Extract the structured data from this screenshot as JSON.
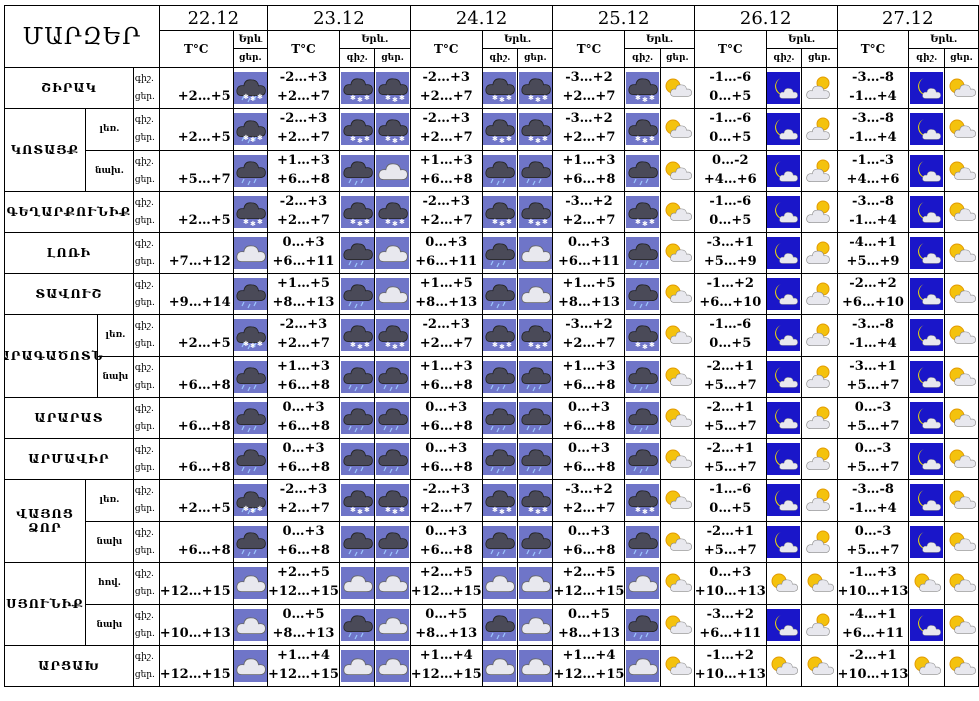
{
  "header": {
    "title": "ՄԱՐԶԵՐ",
    "dates": [
      "22.12",
      "23.12",
      "24.12",
      "25.12",
      "26.12",
      "27.12"
    ],
    "temp_label": "T°C",
    "weather_label_first": "Երև",
    "weather_label": "Երև.",
    "night_label": "գիշ.",
    "day_label": "ցեր."
  },
  "row_labels": {
    "night": "գիշ.",
    "day": "ցեր."
  },
  "regions": [
    {
      "name": "ՇԻՐԱԿ",
      "rows": [
        {
          "d22": "+2…+5",
          "t": [
            "-2…+3",
            "+2…+7",
            "-2…+3",
            "+2…+7",
            "-3…+2",
            "+2…+7",
            "-1…-6",
            "0…+5",
            "-3…-8",
            "-1…+4"
          ]
        }
      ]
    },
    {
      "name": "ԿՈՏԱՅՔ",
      "rows": [
        {
          "sub": "լեռ.",
          "d22": "+2…+5",
          "t": [
            "-2…+3",
            "+2…+7",
            "-2…+3",
            "+2…+7",
            "-3…+2",
            "+2…+7",
            "-1…-6",
            "0…+5",
            "-3…-8",
            "-1…+4"
          ]
        },
        {
          "sub": "նախ.",
          "d22": "+5…+7",
          "t": [
            "+1…+3",
            "+6…+8",
            "+1…+3",
            "+6…+8",
            "+1…+3",
            "+6…+8",
            "0…-2",
            "+4…+6",
            "-1…-3",
            "+4…+6"
          ]
        }
      ]
    },
    {
      "name": "ԳԵՂԱՐՔՈՒՆԻՔ",
      "rows": [
        {
          "d22": "+2…+5",
          "t": [
            "-2…+3",
            "+2…+7",
            "-2…+3",
            "+2…+7",
            "-3…+2",
            "+2…+7",
            "-1…-6",
            "0…+5",
            "-3…-8",
            "-1…+4"
          ]
        }
      ]
    },
    {
      "name": "ԼՈՌԻ",
      "rows": [
        {
          "d22": "+7…+12",
          "t": [
            "0…+3",
            "+6…+11",
            "0…+3",
            "+6…+11",
            "0…+3",
            "+6…+11",
            "-3…+1",
            "+5…+9",
            "-4…+1",
            "+5…+9"
          ]
        }
      ]
    },
    {
      "name": "ՏԱՎՈՒՇ",
      "rows": [
        {
          "d22": "+9…+14",
          "t": [
            "+1…+5",
            "+8…+13",
            "+1…+5",
            "+8…+13",
            "+1…+5",
            "+8…+13",
            "-1…+2",
            "+6…+10",
            "-2…+2",
            "+6…+10"
          ]
        }
      ]
    },
    {
      "name": "ԱՐԱԳԱԾՈՏՆ",
      "rows": [
        {
          "sub": "լեռ.",
          "d22": "+2…+5",
          "t": [
            "-2…+3",
            "+2…+7",
            "-2…+3",
            "+2…+7",
            "-3…+2",
            "+2…+7",
            "-1…-6",
            "0…+5",
            "-3…-8",
            "-1…+4"
          ]
        },
        {
          "sub": "նախ",
          "d22": "+6…+8",
          "t": [
            "+1…+3",
            "+6…+8",
            "+1…+3",
            "+6…+8",
            "+1…+3",
            "+6…+8",
            "-2…+1",
            "+5…+7",
            "-3…+1",
            "+5…+7"
          ]
        }
      ]
    },
    {
      "name": "ԱՐԱՐԱՏ",
      "rows": [
        {
          "d22": "+6…+8",
          "t": [
            "0…+3",
            "+6…+8",
            "0…+3",
            "+6…+8",
            "0…+3",
            "+6…+8",
            "-2…+1",
            "+5…+7",
            "0…-3",
            "+5…+7"
          ]
        }
      ]
    },
    {
      "name": "ԱՐՄԱՎԻՐ",
      "rows": [
        {
          "d22": "+6…+8",
          "t": [
            "0…+3",
            "+6…+8",
            "0…+3",
            "+6…+8",
            "0…+3",
            "+6…+8",
            "-2…+1",
            "+5…+7",
            "0…-3",
            "+5…+7"
          ]
        }
      ]
    },
    {
      "name": "ՎԱՅՈՑ ՁՈՐ",
      "rows": [
        {
          "sub": "լեռ.",
          "d22": "+2…+5",
          "t": [
            "-2…+3",
            "+2…+7",
            "-2…+3",
            "+2…+7",
            "-3…+2",
            "+2…+7",
            "-1…-6",
            "0…+5",
            "-3…-8",
            "-1…+4"
          ]
        },
        {
          "sub": "նախ",
          "d22": "+6…+8",
          "t": [
            "0…+3",
            "+6…+8",
            "0…+3",
            "+6…+8",
            "0…+3",
            "+6…+8",
            "-2…+1",
            "+5…+7",
            "0…-3",
            "+5…+7"
          ]
        }
      ]
    },
    {
      "name": "ՍՅՈՒՆԻՔ",
      "rows": [
        {
          "sub": "հով.",
          "d22": "+12…+15",
          "t": [
            "+2…+5",
            "+12…+15",
            "+2…+5",
            "+12…+15",
            "+2…+5",
            "+12…+15",
            "0…+3",
            "+10…+13",
            "-1…+3",
            "+10…+13"
          ]
        },
        {
          "sub": "նախ",
          "d22": "+10…+13",
          "t": [
            "0…+5",
            "+8…+13",
            "0…+5",
            "+8…+13",
            "0…+5",
            "+8…+13",
            "-3…+2",
            "+6…+11",
            "-4…+1",
            "+6…+11"
          ]
        }
      ]
    },
    {
      "name": "ԱՐՑԱԽ",
      "rows": [
        {
          "d22": "+12…+15",
          "t": [
            "+1…+4",
            "+12…+15",
            "+1…+4",
            "+12…+15",
            "+1…+4",
            "+12…+15",
            "-1…+2",
            "+10…+13",
            "-2…+1",
            "+10…+13"
          ]
        }
      ]
    }
  ],
  "icon_names": [
    "cloud-sleet-icon",
    "cloud-snow-icon",
    "cloud-rain-icon",
    "cloud-icon",
    "sun-cloud-icon",
    "moon-cloud-icon",
    "cloud-sun-icon"
  ],
  "icons": [
    {
      "d22": "cloud-sleet-icon",
      "d23": [
        "cloud-snow-icon",
        "cloud-snow-icon"
      ],
      "d24": [
        "cloud-snow-icon",
        "cloud-snow-icon"
      ],
      "d25": [
        "cloud-snow-icon",
        "sun-cloud-icon"
      ],
      "d26": [
        "moon-cloud-icon",
        "cloud-sun-icon"
      ],
      "d27": [
        "moon-cloud-icon",
        "sun-cloud-icon"
      ]
    },
    {
      "d22": "cloud-sleet-icon",
      "d23": [
        "cloud-snow-icon",
        "cloud-snow-icon"
      ],
      "d24": [
        "cloud-snow-icon",
        "cloud-snow-icon"
      ],
      "d25": [
        "cloud-snow-icon",
        "sun-cloud-icon"
      ],
      "d26": [
        "moon-cloud-icon",
        "cloud-sun-icon"
      ],
      "d27": [
        "moon-cloud-icon",
        "sun-cloud-icon"
      ]
    },
    {
      "d22": "cloud-rain-icon",
      "d23": [
        "cloud-rain-icon",
        "cloud-icon"
      ],
      "d24": [
        "cloud-rain-icon",
        "cloud-rain-icon"
      ],
      "d25": [
        "cloud-rain-icon",
        "sun-cloud-icon"
      ],
      "d26": [
        "moon-cloud-icon",
        "cloud-sun-icon"
      ],
      "d27": [
        "moon-cloud-icon",
        "sun-cloud-icon"
      ]
    },
    {
      "d22": "cloud-snow-icon",
      "d23": [
        "cloud-snow-icon",
        "cloud-snow-icon"
      ],
      "d24": [
        "cloud-snow-icon",
        "cloud-snow-icon"
      ],
      "d25": [
        "cloud-snow-icon",
        "sun-cloud-icon"
      ],
      "d26": [
        "moon-cloud-icon",
        "cloud-sun-icon"
      ],
      "d27": [
        "moon-cloud-icon",
        "sun-cloud-icon"
      ]
    },
    {
      "d22": "cloud-icon",
      "d23": [
        "cloud-rain-icon",
        "cloud-icon"
      ],
      "d24": [
        "cloud-rain-icon",
        "cloud-icon"
      ],
      "d25": [
        "cloud-rain-icon",
        "sun-cloud-icon"
      ],
      "d26": [
        "moon-cloud-icon",
        "cloud-sun-icon"
      ],
      "d27": [
        "moon-cloud-icon",
        "sun-cloud-icon"
      ]
    },
    {
      "d22": "cloud-rain-icon",
      "d23": [
        "cloud-rain-icon",
        "cloud-icon"
      ],
      "d24": [
        "cloud-rain-icon",
        "cloud-icon"
      ],
      "d25": [
        "cloud-rain-icon",
        "sun-cloud-icon"
      ],
      "d26": [
        "moon-cloud-icon",
        "cloud-sun-icon"
      ],
      "d27": [
        "moon-cloud-icon",
        "sun-cloud-icon"
      ]
    },
    {
      "d22": "cloud-sleet-icon",
      "d23": [
        "cloud-snow-icon",
        "cloud-snow-icon"
      ],
      "d24": [
        "cloud-snow-icon",
        "cloud-snow-icon"
      ],
      "d25": [
        "cloud-snow-icon",
        "sun-cloud-icon"
      ],
      "d26": [
        "moon-cloud-icon",
        "cloud-sun-icon"
      ],
      "d27": [
        "moon-cloud-icon",
        "sun-cloud-icon"
      ]
    },
    {
      "d22": "cloud-rain-icon",
      "d23": [
        "cloud-rain-icon",
        "cloud-rain-icon"
      ],
      "d24": [
        "cloud-rain-icon",
        "cloud-rain-icon"
      ],
      "d25": [
        "cloud-rain-icon",
        "sun-cloud-icon"
      ],
      "d26": [
        "moon-cloud-icon",
        "cloud-sun-icon"
      ],
      "d27": [
        "moon-cloud-icon",
        "sun-cloud-icon"
      ]
    },
    {
      "d22": "cloud-rain-icon",
      "d23": [
        "cloud-rain-icon",
        "cloud-rain-icon"
      ],
      "d24": [
        "cloud-rain-icon",
        "cloud-rain-icon"
      ],
      "d25": [
        "cloud-rain-icon",
        "sun-cloud-icon"
      ],
      "d26": [
        "moon-cloud-icon",
        "cloud-sun-icon"
      ],
      "d27": [
        "moon-cloud-icon",
        "sun-cloud-icon"
      ]
    },
    {
      "d22": "cloud-rain-icon",
      "d23": [
        "cloud-rain-icon",
        "cloud-rain-icon"
      ],
      "d24": [
        "cloud-rain-icon",
        "cloud-rain-icon"
      ],
      "d25": [
        "cloud-rain-icon",
        "sun-cloud-icon"
      ],
      "d26": [
        "moon-cloud-icon",
        "cloud-sun-icon"
      ],
      "d27": [
        "moon-cloud-icon",
        "sun-cloud-icon"
      ]
    },
    {
      "d22": "cloud-sleet-icon",
      "d23": [
        "cloud-snow-icon",
        "cloud-snow-icon"
      ],
      "d24": [
        "cloud-snow-icon",
        "cloud-snow-icon"
      ],
      "d25": [
        "cloud-snow-icon",
        "sun-cloud-icon"
      ],
      "d26": [
        "moon-cloud-icon",
        "cloud-sun-icon"
      ],
      "d27": [
        "moon-cloud-icon",
        "sun-cloud-icon"
      ]
    },
    {
      "d22": "cloud-rain-icon",
      "d23": [
        "cloud-rain-icon",
        "cloud-rain-icon"
      ],
      "d24": [
        "cloud-rain-icon",
        "cloud-rain-icon"
      ],
      "d25": [
        "cloud-rain-icon",
        "sun-cloud-icon"
      ],
      "d26": [
        "moon-cloud-icon",
        "cloud-sun-icon"
      ],
      "d27": [
        "moon-cloud-icon",
        "sun-cloud-icon"
      ]
    },
    {
      "d22": "cloud-icon",
      "d23": [
        "cloud-icon",
        "cloud-icon"
      ],
      "d24": [
        "cloud-icon",
        "cloud-icon"
      ],
      "d25": [
        "cloud-icon",
        "sun-cloud-icon"
      ],
      "d26": [
        "sun-cloud-icon",
        "sun-cloud-icon"
      ],
      "d27": [
        "sun-cloud-icon",
        "sun-cloud-icon"
      ]
    },
    {
      "d22": "cloud-icon",
      "d23": [
        "cloud-rain-icon",
        "cloud-icon"
      ],
      "d24": [
        "cloud-rain-icon",
        "cloud-icon"
      ],
      "d25": [
        "cloud-rain-icon",
        "sun-cloud-icon"
      ],
      "d26": [
        "moon-cloud-icon",
        "cloud-sun-icon"
      ],
      "d27": [
        "moon-cloud-icon",
        "sun-cloud-icon"
      ]
    },
    {
      "d22": "cloud-icon",
      "d23": [
        "cloud-icon",
        "cloud-icon"
      ],
      "d24": [
        "cloud-icon",
        "cloud-icon"
      ],
      "d25": [
        "cloud-icon",
        "sun-cloud-icon"
      ],
      "d26": [
        "sun-cloud-icon",
        "sun-cloud-icon"
      ],
      "d27": [
        "sun-cloud-icon",
        "sun-cloud-icon"
      ]
    }
  ],
  "colors": {
    "night_sky": "#1a16c9",
    "day_sky": "#6f75c8",
    "cloud_dark": "#4a4a58",
    "cloud_light": "#e8e8ee",
    "sun": "#f4c20d",
    "moon": "#f3e100"
  }
}
